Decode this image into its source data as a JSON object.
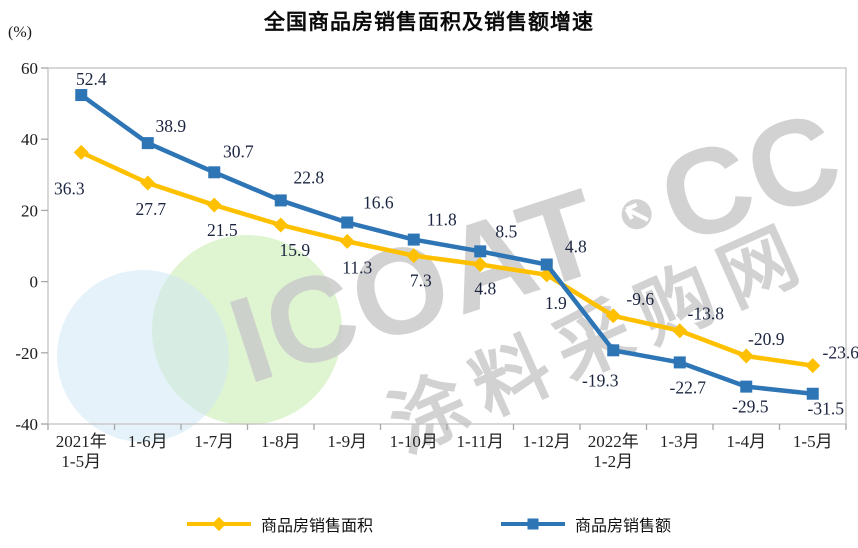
{
  "title": "全国商品房销售面积及销售额增速",
  "watermark": {
    "brand": "ICOAT",
    "brand_suffix": "CC",
    "reg_mark": "®",
    "cn": "涂料采购网"
  },
  "colors": {
    "area_series": "#FFC000",
    "amount_series": "#2E75B6",
    "axis_border": "#c4c4c4",
    "tick": "#a8a8a8",
    "data_label": "#1c2540",
    "watermark_gray": "#cbcbcb",
    "blob_green": "#c9edb0",
    "blob_blue": "#cfe8f4"
  },
  "chart_data": {
    "type": "line",
    "title": "全国商品房销售面积及销售额增速",
    "ylabel": "(%)",
    "xlabel": "",
    "ylim": [
      -40,
      60
    ],
    "yticks": [
      60,
      40,
      20,
      0,
      -20,
      -40
    ],
    "grid": false,
    "legend_position": "bottom",
    "categories": [
      "2021年\n1-5月",
      "1-6月",
      "1-7月",
      "1-8月",
      "1-9月",
      "1-10月",
      "1-11月",
      "1-12月",
      "2022年\n1-2月",
      "1-3月",
      "1-4月",
      "1-5月"
    ],
    "series": [
      {
        "name": "商品房销售面积",
        "color": "#FFC000",
        "marker": "diamond",
        "values": [
          36.3,
          27.7,
          21.5,
          15.9,
          11.3,
          7.3,
          4.8,
          1.9,
          -9.6,
          -13.8,
          -20.9,
          -23.6
        ]
      },
      {
        "name": "商品房销售额",
        "color": "#2E75B6",
        "marker": "square",
        "values": [
          52.4,
          38.9,
          30.7,
          22.8,
          16.6,
          11.8,
          8.5,
          4.8,
          -19.3,
          -22.7,
          -29.5,
          -31.5
        ]
      }
    ]
  }
}
